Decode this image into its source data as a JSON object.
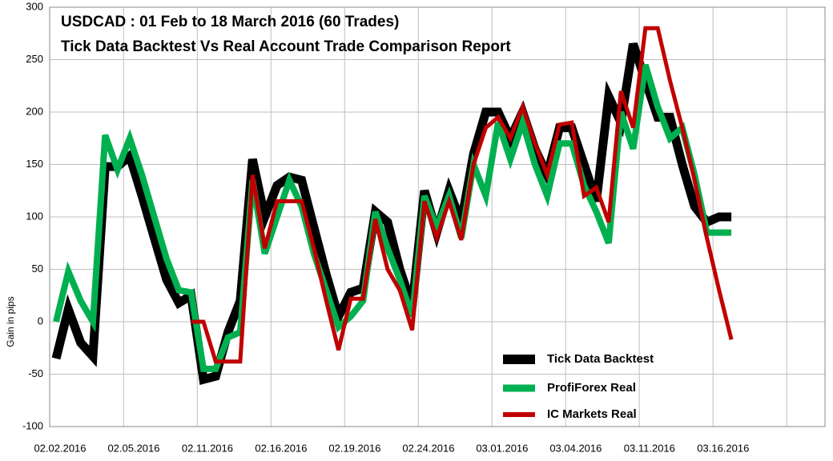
{
  "chart_data": {
    "type": "line",
    "title": "USDCAD : 01 Feb to 18 March 2016 (60 Trades)",
    "subtitle": "Tick Data Backtest Vs Real Account Trade Comparison Report",
    "y_label": "Gain in pips",
    "categories": [
      "02.02.2016",
      null,
      null,
      null,
      null,
      null,
      "02.05.2016",
      null,
      null,
      null,
      null,
      null,
      "02.11.2016",
      null,
      null,
      null,
      null,
      null,
      "02.16.2016",
      null,
      null,
      null,
      null,
      null,
      "02.19.2016",
      null,
      null,
      null,
      null,
      null,
      "02.24.2016",
      null,
      null,
      null,
      null,
      null,
      "03.01.2016",
      null,
      null,
      null,
      null,
      null,
      "03.04.2016",
      null,
      null,
      null,
      null,
      null,
      "03.11.2016",
      null,
      null,
      null,
      null,
      null,
      "03.16.2016",
      null
    ],
    "series": [
      {
        "name": "Tick Data Backtest",
        "color": "#000000",
        "values": [
          -35,
          12,
          -20,
          -33,
          148,
          148,
          158,
          120,
          80,
          40,
          18,
          25,
          -55,
          -52,
          -10,
          20,
          155,
          100,
          130,
          138,
          135,
          90,
          45,
          5,
          28,
          32,
          105,
          95,
          50,
          15,
          125,
          85,
          125,
          95,
          160,
          200,
          200,
          175,
          200,
          165,
          140,
          185,
          185,
          150,
          115,
          215,
          190,
          265,
          230,
          195,
          195,
          150,
          110,
          95,
          100,
          100
        ]
      },
      {
        "name": "ProfiForex Real",
        "color": "#00b050",
        "values": [
          0,
          48,
          20,
          0,
          178,
          145,
          175,
          140,
          100,
          60,
          30,
          28,
          -45,
          -45,
          -15,
          -10,
          135,
          65,
          100,
          135,
          110,
          65,
          30,
          -5,
          5,
          20,
          105,
          70,
          40,
          5,
          120,
          90,
          120,
          80,
          150,
          120,
          190,
          155,
          190,
          150,
          120,
          170,
          170,
          130,
          105,
          75,
          200,
          165,
          245,
          205,
          175,
          185,
          140,
          85,
          85,
          85
        ]
      },
      {
        "name": "IC Markets Real",
        "color": "#c00000",
        "values": [
          null,
          null,
          null,
          null,
          null,
          null,
          null,
          null,
          null,
          null,
          null,
          0,
          0,
          -38,
          -38,
          -38,
          140,
          70,
          115,
          115,
          115,
          70,
          20,
          -27,
          22,
          22,
          98,
          50,
          30,
          -8,
          115,
          80,
          115,
          78,
          150,
          185,
          195,
          175,
          205,
          170,
          140,
          188,
          190,
          120,
          128,
          95,
          220,
          185,
          280,
          280,
          230,
          185,
          135,
          80,
          30,
          -17
        ]
      }
    ],
    "ylim": [
      -100,
      300
    ],
    "yticks": [
      -100,
      -50,
      0,
      50,
      100,
      150,
      200,
      250,
      300
    ],
    "grid": true,
    "legend": "lower right"
  }
}
